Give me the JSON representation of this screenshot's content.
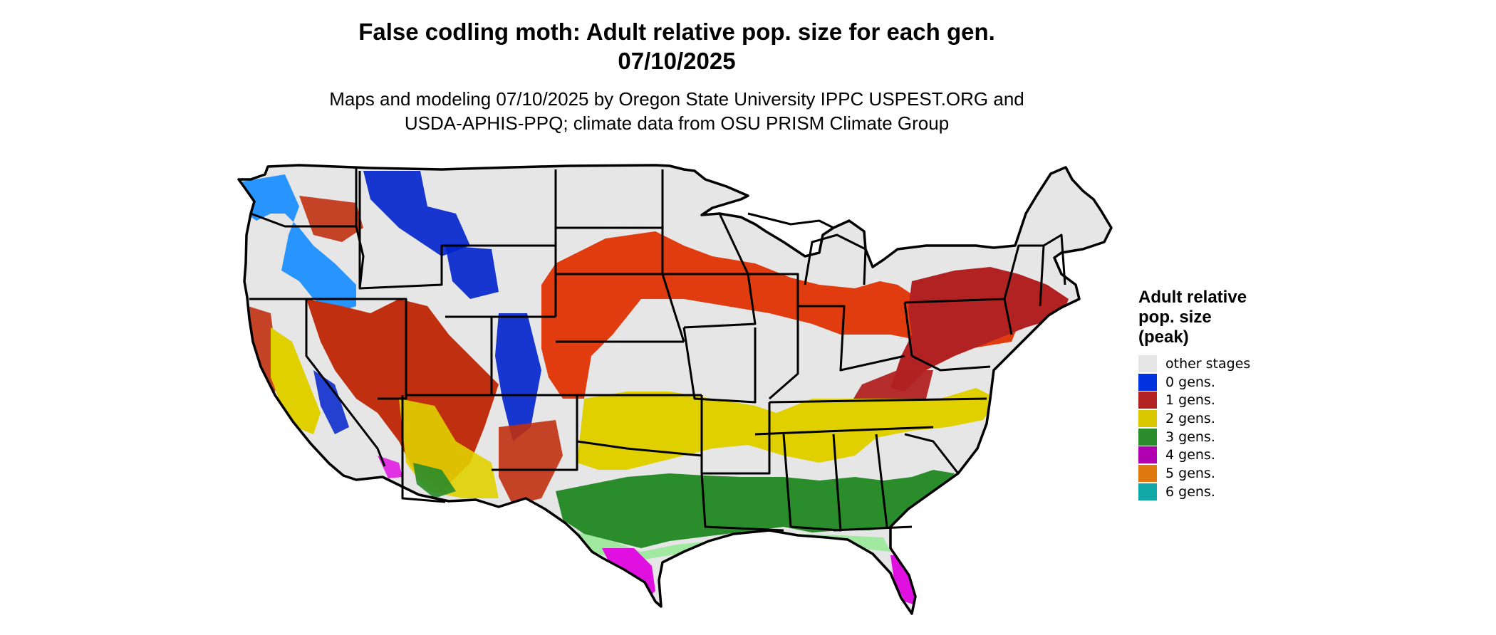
{
  "title_line1": "False codling moth: Adult relative pop. size for each gen.",
  "title_line2": "07/10/2025",
  "subtitle_line1": "Maps and modeling 07/10/2025 by Oregon State University IPPC USPEST.ORG and",
  "subtitle_line2": "USDA-APHIS-PPQ; climate data from OSU PRISM Climate Group",
  "legend": {
    "title_line1": "Adult relative",
    "title_line2": "pop. size",
    "title_line3": "(peak)",
    "items": [
      {
        "label": "other stages",
        "color": "#e6e6e6"
      },
      {
        "label": "0 gens.",
        "color": "#0033e0"
      },
      {
        "label": "1 gens.",
        "color": "#b22222"
      },
      {
        "label": "2 gens.",
        "color": "#d9c800"
      },
      {
        "label": "3 gens.",
        "color": "#2a8c2a"
      },
      {
        "label": "4 gens.",
        "color": "#b000b0"
      },
      {
        "label": "5 gens.",
        "color": "#e07a10"
      },
      {
        "label": "6 gens.",
        "color": "#12a8a8"
      }
    ]
  },
  "map_colors": {
    "background_land": "#e6e6e6",
    "zero_gen_light": "#1e90ff",
    "zero_gen_dark": "#0022cc",
    "one_gen_orange": "#e03c10",
    "one_gen_dark": "#b22222",
    "two_gen": "#e0d000",
    "three_gen": "#2a8c2a",
    "three_gen_light": "#90e890",
    "four_gen": "#e010e0",
    "border": "#000000"
  }
}
